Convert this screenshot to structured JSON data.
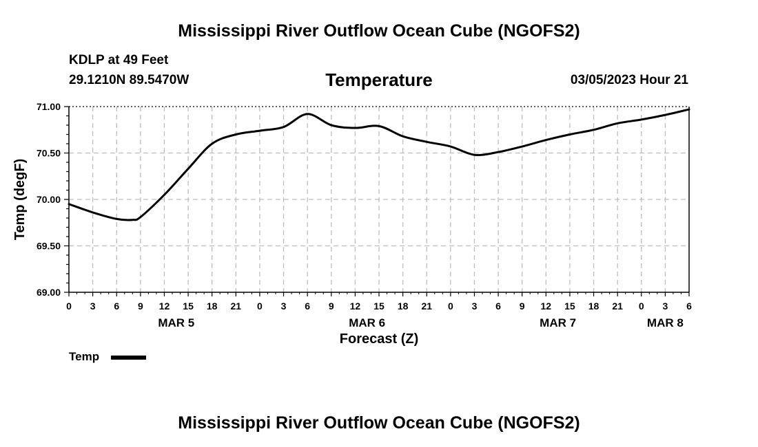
{
  "page": {
    "title_top": "Mississippi River Outflow Ocean Cube (NGOFS2)",
    "title_bottom": "Mississippi River Outflow Ocean Cube (NGOFS2)",
    "station": "KDLP at 49 Feet",
    "coords": "29.1210N  89.5470W",
    "datetime": "03/05/2023 Hour 21"
  },
  "chart_data": {
    "type": "line",
    "title": "Temperature",
    "xlabel": "Forecast (Z)",
    "ylabel": "Temp (degF)",
    "ylim": [
      69.0,
      71.0
    ],
    "xlim": [
      0,
      78
    ],
    "yticks": [
      69.0,
      69.5,
      70.0,
      70.5,
      71.0
    ],
    "ytick_labels": [
      "69.00",
      "69.50",
      "70.00",
      "70.50",
      "71.00"
    ],
    "xtick_labels": [
      "0",
      "3",
      "6",
      "9",
      "12",
      "15",
      "18",
      "21",
      "0",
      "3",
      "6",
      "9",
      "12",
      "15",
      "18",
      "21",
      "0",
      "3",
      "6",
      "9",
      "12",
      "15",
      "18",
      "21",
      "0",
      "3",
      "6"
    ],
    "day_labels": [
      {
        "label": "MAR 5",
        "hour": 13.5
      },
      {
        "label": "MAR 6",
        "hour": 37.5
      },
      {
        "label": "MAR 7",
        "hour": 61.5
      },
      {
        "label": "MAR 8",
        "hour": 75
      }
    ],
    "grid": true,
    "legend_position": "bottom-left",
    "series": [
      {
        "name": "Temp",
        "x": [
          0,
          3,
          6,
          8,
          9,
          12,
          15,
          18,
          21,
          24,
          27,
          30,
          33,
          36,
          39,
          42,
          45,
          48,
          51,
          54,
          57,
          60,
          63,
          66,
          69,
          72,
          75,
          78
        ],
        "values": [
          69.95,
          69.86,
          69.79,
          69.78,
          69.81,
          70.05,
          70.33,
          70.6,
          70.7,
          70.74,
          70.78,
          70.92,
          70.8,
          70.77,
          70.79,
          70.68,
          70.62,
          70.57,
          70.48,
          70.51,
          70.57,
          70.64,
          70.7,
          70.75,
          70.82,
          70.86,
          70.91,
          70.97
        ]
      }
    ]
  }
}
